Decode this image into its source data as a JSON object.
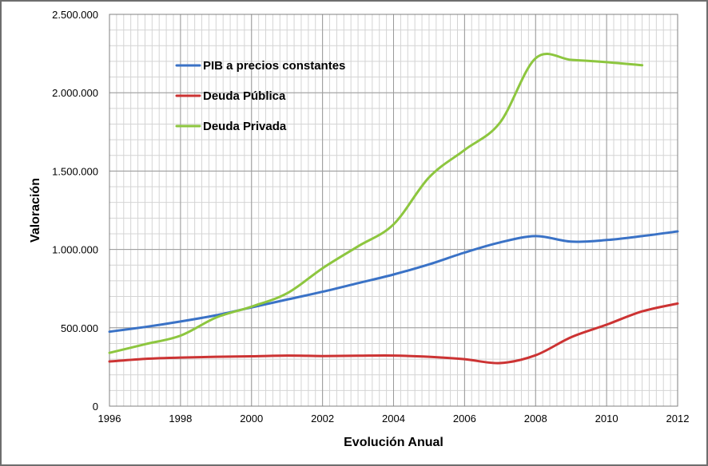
{
  "chart_data": {
    "type": "line",
    "xlabel": "Evolución Anual",
    "ylabel": "Valoración",
    "xlim": [
      1996,
      2012
    ],
    "ylim": [
      0,
      2500000
    ],
    "x_ticks": [
      1996,
      1998,
      2000,
      2002,
      2004,
      2006,
      2008,
      2010,
      2012
    ],
    "x_tick_labels": [
      "1996",
      "1998",
      "2000",
      "2002",
      "2004",
      "2006",
      "2008",
      "2010",
      "2012"
    ],
    "y_ticks": [
      0,
      500000,
      1000000,
      1500000,
      2000000,
      2500000
    ],
    "y_tick_labels": [
      "0",
      "500.000",
      "1.000.000",
      "1.500.000",
      "2.000.000",
      "2.500.000"
    ],
    "grid": true,
    "legend_position": "top-left",
    "series": [
      {
        "name": "PIB a precios constantes",
        "color": "#3a72c6",
        "x": [
          1996,
          1997,
          1998,
          1999,
          2000,
          2001,
          2002,
          2003,
          2004,
          2005,
          2006,
          2007,
          2008,
          2009,
          2010,
          2011,
          2012
        ],
        "values": [
          475000,
          505000,
          540000,
          580000,
          630000,
          680000,
          730000,
          785000,
          840000,
          905000,
          980000,
          1045000,
          1085000,
          1050000,
          1060000,
          1085000,
          1115000
        ]
      },
      {
        "name": "Deuda Pública",
        "color": "#cc3333",
        "x": [
          1996,
          1997,
          1998,
          1999,
          2000,
          2001,
          2002,
          2003,
          2004,
          2005,
          2006,
          2007,
          2008,
          2009,
          2010,
          2011,
          2012
        ],
        "values": [
          285000,
          302000,
          310000,
          315000,
          318000,
          323000,
          320000,
          322000,
          323000,
          315000,
          300000,
          275000,
          325000,
          440000,
          520000,
          605000,
          655000
        ]
      },
      {
        "name": "Deuda Privada",
        "color": "#8dc63f",
        "x": [
          1996,
          1997,
          1998,
          1999,
          2000,
          2001,
          2002,
          2003,
          2004,
          2005,
          2006,
          2007,
          2008,
          2009,
          2010,
          2011
        ],
        "values": [
          340000,
          395000,
          450000,
          565000,
          635000,
          720000,
          880000,
          1020000,
          1160000,
          1460000,
          1635000,
          1810000,
          2220000,
          2210000,
          2195000,
          2175000
        ]
      }
    ]
  }
}
